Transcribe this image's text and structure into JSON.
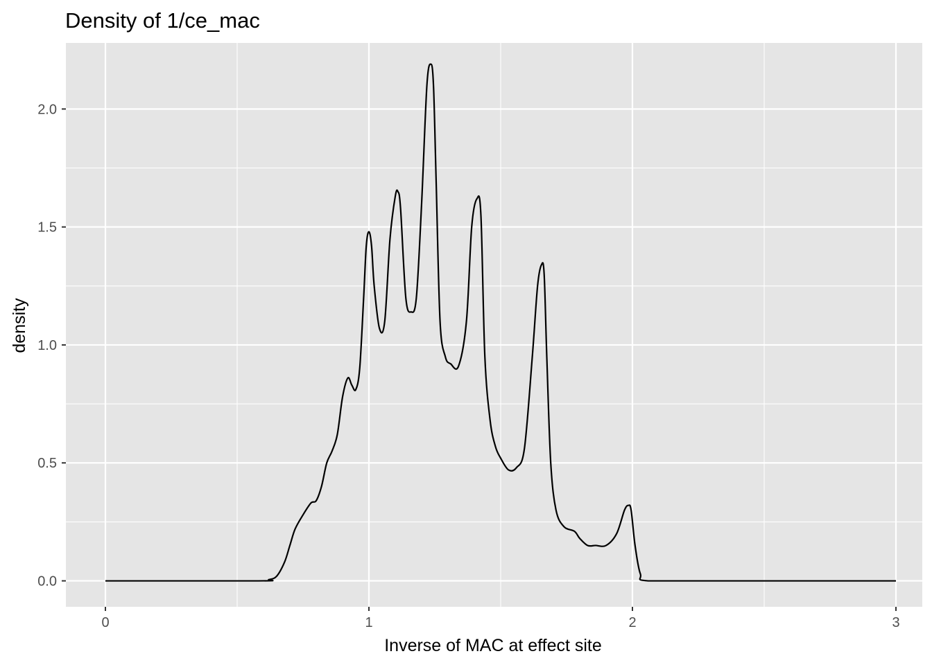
{
  "chart_data": {
    "type": "line",
    "title": "Density of 1/ce_mac",
    "xlabel": "Inverse of MAC at effect site",
    "ylabel": "density",
    "xlim": [
      -0.15,
      3.1
    ],
    "ylim": [
      -0.11,
      2.28
    ],
    "x_ticks": [
      0,
      1,
      2,
      3
    ],
    "x_tick_labels": [
      "0",
      "1",
      "2",
      "3"
    ],
    "x_minor_ticks": [
      0.5,
      1.5,
      2.5
    ],
    "y_ticks": [
      0.0,
      0.5,
      1.0,
      1.5,
      2.0
    ],
    "y_tick_labels": [
      "0.0",
      "0.5",
      "1.0",
      "1.5",
      "2.0"
    ],
    "y_minor_ticks": [
      0.25,
      0.75,
      1.25,
      1.75
    ],
    "grid": true,
    "panel_background": "#e5e5e5",
    "grid_color": "#ffffff",
    "line_color": "#000000",
    "series": [
      {
        "x": [
          0,
          0.58,
          0.62,
          0.65,
          0.68,
          0.7,
          0.72,
          0.75,
          0.78,
          0.8,
          0.82,
          0.84,
          0.86,
          0.88,
          0.9,
          0.92,
          0.935,
          0.95,
          0.965,
          0.98,
          0.99,
          1.0,
          1.01,
          1.02,
          1.04,
          1.06,
          1.08,
          1.1,
          1.11,
          1.12,
          1.14,
          1.16,
          1.18,
          1.2,
          1.22,
          1.235,
          1.245,
          1.255,
          1.27,
          1.29,
          1.31,
          1.34,
          1.37,
          1.39,
          1.41,
          1.425,
          1.44,
          1.46,
          1.48,
          1.5,
          1.53,
          1.56,
          1.59,
          1.62,
          1.64,
          1.655,
          1.665,
          1.675,
          1.69,
          1.71,
          1.74,
          1.78,
          1.8,
          1.83,
          1.86,
          1.9,
          1.94,
          1.97,
          1.985,
          1.995,
          2.01,
          2.03,
          2.06,
          2.35,
          3.0
        ],
        "y": [
          0,
          0,
          0.005,
          0.02,
          0.08,
          0.15,
          0.22,
          0.28,
          0.33,
          0.34,
          0.4,
          0.5,
          0.55,
          0.62,
          0.78,
          0.86,
          0.83,
          0.81,
          0.9,
          1.2,
          1.42,
          1.48,
          1.42,
          1.25,
          1.07,
          1.1,
          1.45,
          1.63,
          1.65,
          1.58,
          1.2,
          1.14,
          1.2,
          1.6,
          2.1,
          2.19,
          2.1,
          1.7,
          1.1,
          0.95,
          0.92,
          0.91,
          1.1,
          1.5,
          1.62,
          1.55,
          0.95,
          0.68,
          0.57,
          0.52,
          0.47,
          0.48,
          0.56,
          0.95,
          1.25,
          1.34,
          1.3,
          0.95,
          0.5,
          0.3,
          0.23,
          0.21,
          0.18,
          0.15,
          0.15,
          0.15,
          0.2,
          0.3,
          0.32,
          0.3,
          0.15,
          0.03,
          0,
          0,
          0
        ]
      }
    ]
  }
}
